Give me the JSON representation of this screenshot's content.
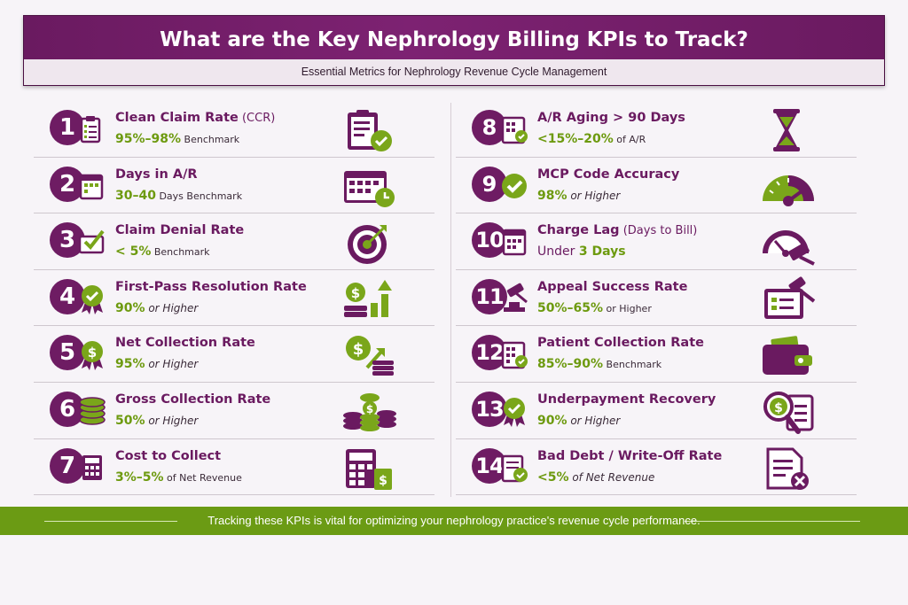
{
  "header": {
    "title": "What are the Key Nephrology Billing KPIs to Track?",
    "subtitle": "Essential Metrics for Nephrology Revenue Cycle Management"
  },
  "kpis_left": [
    {
      "num": "1",
      "label": "Clean Claim Rate",
      "label_suffix": " (CCR)",
      "hi": "95%–98%",
      "lo": " Benchmark",
      "lo_italic": false,
      "icon": "clipboard-check-icon"
    },
    {
      "num": "2",
      "label": "Days in A/R",
      "label_suffix": "",
      "hi": "30–40",
      "lo": " Days Benchmark",
      "lo_italic": false,
      "icon": "calendar-clock-icon"
    },
    {
      "num": "3",
      "label": "Claim Denial Rate",
      "label_suffix": "",
      "hi": "< 5%",
      "lo": " Benchmark",
      "lo_italic": false,
      "icon": "target-icon"
    },
    {
      "num": "4",
      "label": "First-Pass Resolution Rate",
      "label_suffix": "",
      "hi": "90%",
      "lo": " or Higher",
      "lo_italic": true,
      "icon": "money-growth-icon"
    },
    {
      "num": "5",
      "label": "Net Collection Rate",
      "label_suffix": "",
      "hi": "95%",
      "lo": " or Higher",
      "lo_italic": true,
      "icon": "dollar-arrow-icon"
    },
    {
      "num": "6",
      "label": "Gross Collection Rate",
      "label_suffix": "",
      "hi": "50%",
      "lo": " or Higher",
      "lo_italic": true,
      "icon": "coin-stacks-icon"
    },
    {
      "num": "7",
      "label": "Cost to Collect",
      "label_suffix": "",
      "hi": "3%–5%",
      "lo": " of Net Revenue",
      "lo_italic": false,
      "icon": "calculator-dollar-icon"
    }
  ],
  "kpis_right": [
    {
      "num": "8",
      "label": "A/R Aging > 90 Days",
      "label_suffix": "",
      "hi": "<15%–20%",
      "lo": " of A/R",
      "lo_italic": false,
      "icon": "hourglass-icon"
    },
    {
      "num": "9",
      "label": "MCP Code Accuracy",
      "label_suffix": "",
      "hi": "98%",
      "lo": " or Higher",
      "lo_italic": true,
      "icon": "gauge-icon"
    },
    {
      "num": "10",
      "label": "Charge Lag",
      "label_suffix": " (Days to Bill)",
      "hi": "",
      "lo": "",
      "lo_italic": false,
      "plain": "Under ",
      "hi2": "3 Days",
      "icon": "gauge-gavel-icon"
    },
    {
      "num": "11",
      "label": "Appeal Success Rate",
      "label_suffix": "",
      "hi": "50%–65%",
      "lo": " or Higher",
      "lo_italic": false,
      "icon": "document-gavel-icon"
    },
    {
      "num": "12",
      "label": "Patient Collection Rate",
      "label_suffix": "",
      "hi": "85%–90%",
      "lo": " Benchmark",
      "lo_italic": false,
      "icon": "wallet-icon"
    },
    {
      "num": "13",
      "label": "Underpayment Recovery",
      "label_suffix": "",
      "hi": "90%",
      "lo": " or Higher",
      "lo_italic": true,
      "icon": "magnifier-dollar-icon"
    },
    {
      "num": "14",
      "label": "Bad Debt / Write-Off Rate",
      "label_suffix": "",
      "hi": "<5%",
      "lo": " of Net Revenue",
      "lo_italic": true,
      "icon": "document-x-icon"
    }
  ],
  "footer": {
    "text": "Tracking these KPIs is vital for optimizing your nephrology practice's revenue cycle performance."
  },
  "colors": {
    "purple": "#6a1a60",
    "green": "#6b9b14",
    "accent_green": "#6d9a0f"
  }
}
